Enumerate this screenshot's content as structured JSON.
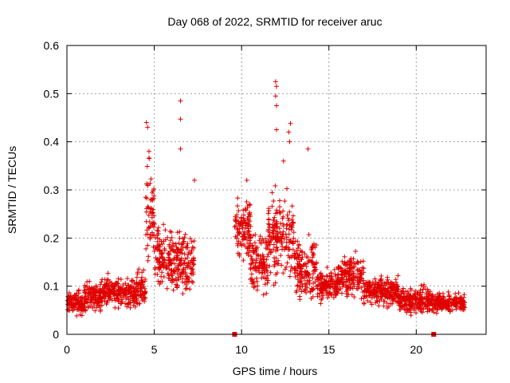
{
  "chart_data": {
    "type": "scatter",
    "title": "Day 068 of 2022, SRMTID for receiver aruc",
    "xlabel": "GPS time / hours",
    "ylabel": "SRMTID / TECUs",
    "xlim": [
      0,
      24
    ],
    "ylim": [
      0,
      0.6
    ],
    "xticks": [
      "0",
      "5",
      "10",
      "15",
      "20"
    ],
    "yticks": [
      "0",
      "0.1",
      "0.2",
      "0.3",
      "0.4",
      "0.5",
      "0.6"
    ],
    "grid": true,
    "marker": "plus",
    "color": "#e00000",
    "approximate_density_profile": [
      {
        "start": 0.0,
        "end": 0.4,
        "mid": 0.065,
        "spread": 0.02
      },
      {
        "start": 0.4,
        "end": 1.0,
        "mid": 0.065,
        "spread": 0.025
      },
      {
        "start": 1.0,
        "end": 2.0,
        "mid": 0.08,
        "spread": 0.03
      },
      {
        "start": 2.0,
        "end": 3.0,
        "mid": 0.09,
        "spread": 0.03
      },
      {
        "start": 3.0,
        "end": 4.0,
        "mid": 0.085,
        "spread": 0.03
      },
      {
        "start": 4.0,
        "end": 4.5,
        "mid": 0.09,
        "spread": 0.04
      },
      {
        "start": 4.5,
        "end": 5.0,
        "mid": 0.25,
        "spread": 0.1
      },
      {
        "start": 5.0,
        "end": 6.0,
        "mid": 0.16,
        "spread": 0.06
      },
      {
        "start": 6.0,
        "end": 7.3,
        "mid": 0.15,
        "spread": 0.06
      },
      {
        "start": 9.6,
        "end": 10.5,
        "mid": 0.22,
        "spread": 0.07
      },
      {
        "start": 10.5,
        "end": 11.5,
        "mid": 0.15,
        "spread": 0.07
      },
      {
        "start": 11.5,
        "end": 13.0,
        "mid": 0.2,
        "spread": 0.08
      },
      {
        "start": 13.0,
        "end": 14.3,
        "mid": 0.14,
        "spread": 0.06
      },
      {
        "start": 14.3,
        "end": 15.5,
        "mid": 0.1,
        "spread": 0.03
      },
      {
        "start": 15.5,
        "end": 17.0,
        "mid": 0.12,
        "spread": 0.04
      },
      {
        "start": 17.0,
        "end": 19.0,
        "mid": 0.09,
        "spread": 0.03
      },
      {
        "start": 19.0,
        "end": 21.0,
        "mid": 0.07,
        "spread": 0.025
      },
      {
        "start": 21.0,
        "end": 22.8,
        "mid": 0.065,
        "spread": 0.02
      }
    ],
    "peaks": [
      {
        "x": 4.55,
        "y": 0.44
      },
      {
        "x": 4.62,
        "y": 0.43
      },
      {
        "x": 4.7,
        "y": 0.38
      },
      {
        "x": 6.5,
        "y": 0.485
      },
      {
        "x": 6.5,
        "y": 0.447
      },
      {
        "x": 6.5,
        "y": 0.385
      },
      {
        "x": 7.3,
        "y": 0.32
      },
      {
        "x": 11.95,
        "y": 0.525
      },
      {
        "x": 12.0,
        "y": 0.515
      },
      {
        "x": 11.95,
        "y": 0.495
      },
      {
        "x": 12.0,
        "y": 0.475
      },
      {
        "x": 12.0,
        "y": 0.425
      },
      {
        "x": 12.8,
        "y": 0.438
      },
      {
        "x": 12.7,
        "y": 0.42
      },
      {
        "x": 12.75,
        "y": 0.4
      },
      {
        "x": 13.8,
        "y": 0.385
      },
      {
        "x": 12.4,
        "y": 0.36
      },
      {
        "x": 10.3,
        "y": 0.32
      }
    ],
    "zero_markers": [
      {
        "x": 9.6,
        "y": 0
      },
      {
        "x": 21.0,
        "y": 0
      }
    ]
  }
}
